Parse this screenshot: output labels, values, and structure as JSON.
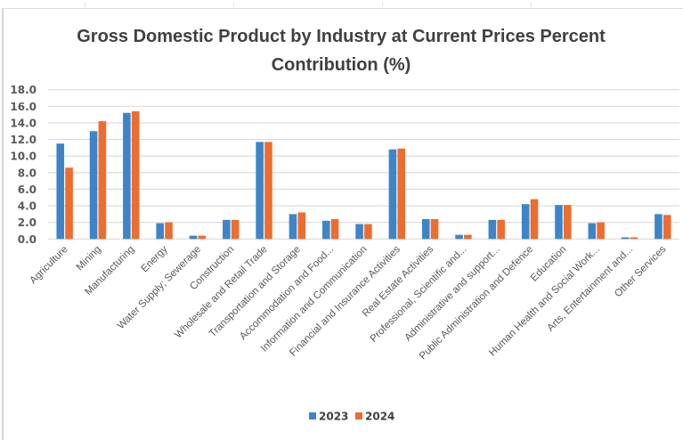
{
  "chart_data": {
    "type": "bar",
    "title": "Gross Domestic Product by Industry at Current Prices Percent Contribution (%)",
    "title_lines": [
      "Gross Domestic Product by Industry at Current Prices Percent",
      "Contribution (%)"
    ],
    "xlabel": "",
    "ylabel": "",
    "ylim": [
      0,
      18
    ],
    "yticks": [
      0,
      2,
      4,
      6,
      8,
      10,
      12,
      14,
      16,
      18
    ],
    "ytick_labels": [
      "0.0",
      "2.0",
      "4.0",
      "6.0",
      "8.0",
      "10.0",
      "12.0",
      "14.0",
      "16.0",
      "18.0"
    ],
    "grid": true,
    "legend_position": "bottom",
    "categories": [
      "Agriculture",
      "Mining",
      "Manufacturing",
      "Energy",
      "Water Supply; Sewerage",
      "Construction",
      "Wholesale and Retail Trade",
      "Transportation and Storage",
      "Accommodation and Food...",
      "Information and Communication",
      "Financial and Insurance Activities",
      "Real Estate Activities",
      "Professional, Scientific and...",
      "Administrative and support...",
      "Public Administration and Defence",
      "Education",
      "Human Health and Social Work...",
      "Arts, Entertainment and...",
      "Other Services"
    ],
    "series": [
      {
        "name": "2023",
        "color": "#3d85c8",
        "values": [
          11.5,
          13.0,
          15.2,
          1.9,
          0.4,
          2.3,
          11.7,
          3.0,
          2.2,
          1.8,
          10.8,
          2.4,
          0.5,
          2.3,
          4.2,
          4.1,
          1.9,
          0.2,
          3.0
        ]
      },
      {
        "name": "2024",
        "color": "#ed6d2f",
        "values": [
          8.6,
          14.2,
          15.4,
          2.0,
          0.4,
          2.3,
          11.7,
          3.2,
          2.4,
          1.8,
          10.9,
          2.4,
          0.5,
          2.3,
          4.8,
          4.1,
          2.0,
          0.2,
          2.9
        ]
      }
    ]
  }
}
